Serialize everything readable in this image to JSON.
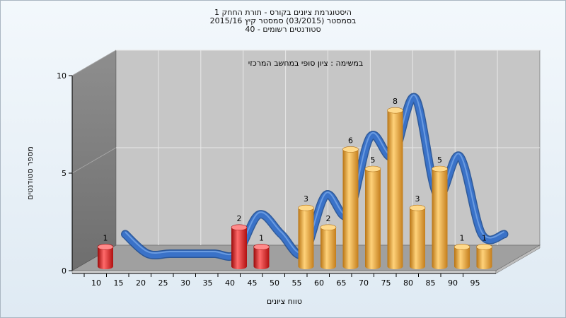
{
  "titles": {
    "line1": "היסטוגרמת ציונים בקורס - תורת החחק 1",
    "line2": "בסמסטר  (03/2015)  סמסטר קיץ 2015/16",
    "line3": "סטודנטים רשומים - 40"
  },
  "chart_data": {
    "type": "bar",
    "subtitle": "במשימה : ציון סופי במחשב המרכזי",
    "xlabel": "טווח ציונים",
    "ylabel": "מספר סטודנטים",
    "ylim": [
      0,
      10
    ],
    "yticks": [
      "0",
      "5",
      "10"
    ],
    "xtick_labels": [
      "10",
      "15",
      "20",
      "25",
      "30",
      "35",
      "40",
      "45",
      "50",
      "55",
      "60",
      "65",
      "70",
      "75",
      "80",
      "85",
      "90",
      "95"
    ],
    "categories": [
      "10",
      "15",
      "20",
      "25",
      "30",
      "35",
      "40",
      "45",
      "50",
      "55",
      "60",
      "65",
      "70",
      "75",
      "80",
      "85",
      "90",
      "95"
    ],
    "values": [
      1,
      0,
      0,
      0,
      0,
      0,
      2,
      1,
      0,
      3,
      2,
      6,
      5,
      8,
      3,
      5,
      1,
      1
    ],
    "value_labels": [
      "1",
      "",
      "",
      "",
      "",
      "",
      "2",
      "1",
      "",
      "3",
      "2",
      "6",
      "5",
      "8",
      "3",
      "5",
      "1",
      "1"
    ],
    "colors": {
      "fail": "#e01818",
      "pass": "#f0a830",
      "curve": "#3a72c8",
      "curve_back": "#707070",
      "back_wall": "#c8c8c8",
      "side_wall": "#8a8a8a",
      "floor": "#9a9a9a"
    },
    "grid": true
  }
}
